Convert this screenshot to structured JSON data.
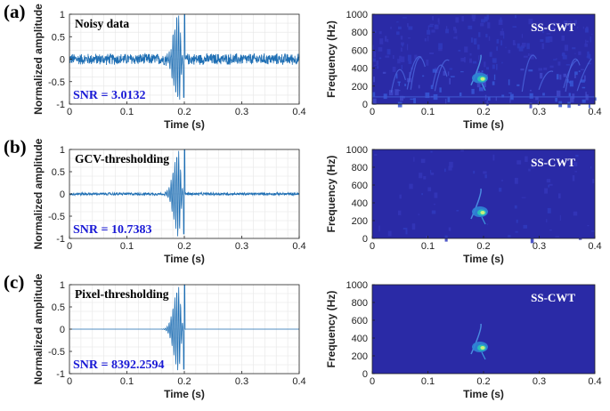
{
  "colors": {
    "signal": "#1f6fb4",
    "snr_text": "#1a1ad6",
    "tf_background": "#2a2aa6",
    "axis": "#222222",
    "grid": "#e6e6e6"
  },
  "panels": [
    {
      "label": "(a)",
      "title": "Noisy data",
      "snr": "SNR = 3.0132",
      "tf_title": "SS-CWT"
    },
    {
      "label": "(b)",
      "title": "GCV-thresholding",
      "snr": "SNR = 10.7383",
      "tf_title": "SS-CWT"
    },
    {
      "label": "(c)",
      "title": "Pixel-thresholding",
      "snr": "SNR = 8392.2594",
      "tf_title": "SS-CWT"
    }
  ],
  "chart_data": [
    {
      "type": "line",
      "panel": "(a)",
      "title": "Noisy data",
      "annotation": "SNR = 3.0132",
      "xlabel": "Time (s)",
      "ylabel": "Normalized amplitude",
      "xlim": [
        0,
        0.4
      ],
      "ylim": [
        -1,
        1
      ],
      "xticks": [
        "0",
        "0.1",
        "0.2",
        "0.3",
        "0.4"
      ],
      "yticks": [
        "-1",
        "-0.5",
        "0",
        "0.5",
        "1"
      ],
      "grid": true,
      "signal": {
        "noise_amplitude": 0.14,
        "event_center_s": 0.19,
        "event_peak": 1.0,
        "event_min": -0.85
      }
    },
    {
      "type": "heatmap",
      "panel": "(a)",
      "title": "SS-CWT",
      "xlabel": "Time (s)",
      "ylabel": "Frequency (Hz)",
      "xlim": [
        0,
        0.4
      ],
      "ylim": [
        0,
        1000
      ],
      "xticks": [
        "0",
        "0.1",
        "0.2",
        "0.3",
        "0.4"
      ],
      "yticks": [
        "0",
        "200",
        "400",
        "600",
        "800",
        "1000"
      ],
      "energy_peak": {
        "time_s": 0.2,
        "freq_hz": 290
      },
      "noise_level": "high"
    },
    {
      "type": "line",
      "panel": "(b)",
      "title": "GCV-thresholding",
      "annotation": "SNR = 10.7383",
      "xlabel": "Time (s)",
      "ylabel": "Normalized amplitude",
      "xlim": [
        0,
        0.4
      ],
      "ylim": [
        -1,
        1
      ],
      "xticks": [
        "0",
        "0.1",
        "0.2",
        "0.3",
        "0.4"
      ],
      "yticks": [
        "-1",
        "-0.5",
        "0",
        "0.5",
        "1"
      ],
      "grid": true,
      "signal": {
        "noise_amplitude": 0.035,
        "event_center_s": 0.19,
        "event_peak": 1.0,
        "event_min": -0.9
      }
    },
    {
      "type": "heatmap",
      "panel": "(b)",
      "title": "SS-CWT",
      "xlabel": "Time (s)",
      "ylabel": "Frequency (Hz)",
      "xlim": [
        0,
        0.4
      ],
      "ylim": [
        0,
        1000
      ],
      "xticks": [
        "0",
        "0.1",
        "0.2",
        "0.3",
        "0.4"
      ],
      "yticks": [
        "0",
        "200",
        "400",
        "600",
        "800",
        "1000"
      ],
      "energy_peak": {
        "time_s": 0.2,
        "freq_hz": 300
      },
      "noise_level": "low"
    },
    {
      "type": "line",
      "panel": "(c)",
      "title": "Pixel-thresholding",
      "annotation": "SNR = 8392.2594",
      "xlabel": "Time (s)",
      "ylabel": "Normalized amplitude",
      "xlim": [
        0,
        0.4
      ],
      "ylim": [
        -1,
        1
      ],
      "xticks": [
        "0",
        "0.1",
        "0.2",
        "0.3",
        "0.4"
      ],
      "yticks": [
        "-1",
        "-0.5",
        "0",
        "0.5",
        "1"
      ],
      "grid": true,
      "signal": {
        "noise_amplitude": 0.0,
        "event_center_s": 0.19,
        "event_peak": 1.0,
        "event_min": -0.9
      }
    },
    {
      "type": "heatmap",
      "panel": "(c)",
      "title": "SS-CWT",
      "xlabel": "Time (s)",
      "ylabel": "Frequency (Hz)",
      "xlim": [
        0,
        0.4
      ],
      "ylim": [
        0,
        1000
      ],
      "xticks": [
        "0",
        "0.1",
        "0.2",
        "0.3",
        "0.4"
      ],
      "yticks": [
        "0",
        "200",
        "400",
        "600",
        "800",
        "1000"
      ],
      "energy_peak": {
        "time_s": 0.2,
        "freq_hz": 300
      },
      "noise_level": "none"
    }
  ]
}
